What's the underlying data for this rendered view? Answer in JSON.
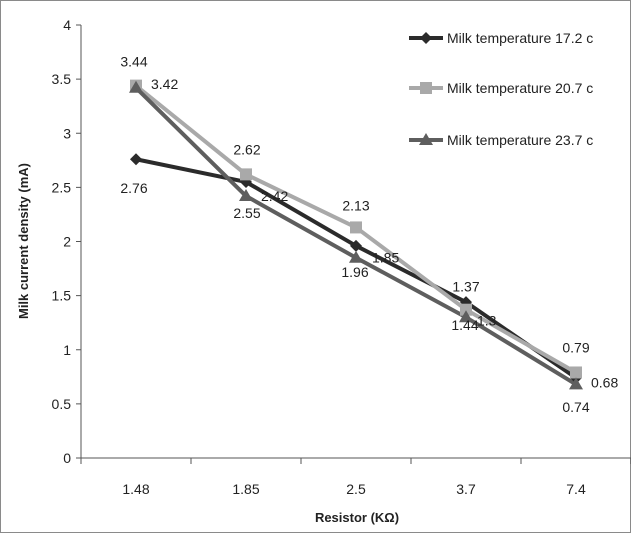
{
  "chart_data": {
    "type": "line",
    "title": "",
    "xlabel": "Resistor (KΩ)",
    "ylabel": "Milk current density (mA)",
    "categories": [
      "1.48",
      "1.85",
      "2.5",
      "3.7",
      "7.4"
    ],
    "ylim": [
      0,
      4
    ],
    "yticks": [
      "0",
      "0.5",
      "1",
      "1.5",
      "2",
      "2.5",
      "3",
      "3.5",
      "4"
    ],
    "grid": false,
    "legend_position": "top-right",
    "series": [
      {
        "name": "Milk temperature 17.2 c",
        "values": [
          2.76,
          2.55,
          1.96,
          1.44,
          0.74
        ],
        "labels": [
          "2.76",
          "2.55",
          "1.96",
          "1.44",
          "0.74"
        ],
        "color": "#2b2b2b",
        "marker": "diamond"
      },
      {
        "name": "Milk temperature 20.7 c",
        "values": [
          3.44,
          2.62,
          2.13,
          1.37,
          0.79
        ],
        "labels": [
          "3.44",
          "2.62",
          "2.13",
          "1.37",
          "0.79"
        ],
        "color": "#a9a9a9",
        "marker": "square"
      },
      {
        "name": "Milk temperature 23.7 c",
        "values": [
          3.42,
          2.42,
          1.85,
          1.3,
          0.68
        ],
        "labels": [
          "3.42",
          "2.42",
          "1.85",
          "1.3",
          "0.68"
        ],
        "color": "#5e5e5e",
        "marker": "triangle"
      }
    ]
  }
}
